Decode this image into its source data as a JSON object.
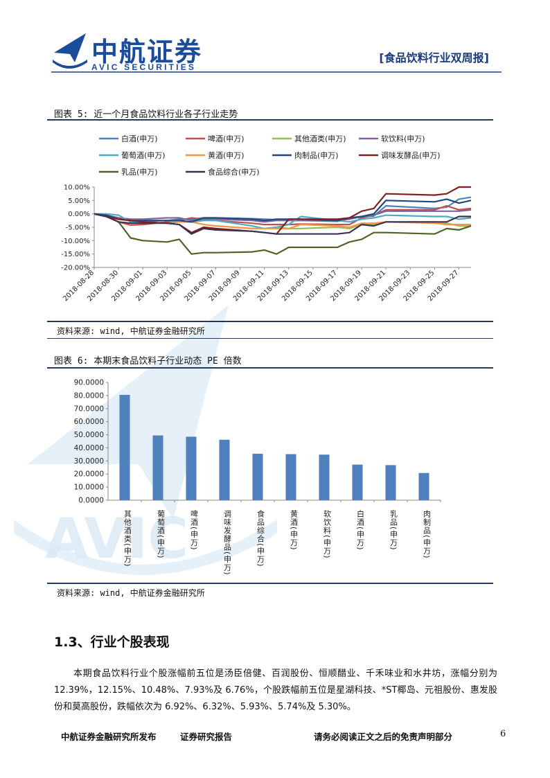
{
  "header": {
    "logo_cn": "中航证券",
    "logo_en": "AVIC SECURITIES",
    "logo_badge": "AVIC",
    "report_title": "[食品饮料行业双周报]"
  },
  "watermark": {
    "text": "AVIC"
  },
  "figure5": {
    "caption": "图表 5:  近一个月食品饮料行业各子行业走势",
    "source": "资料来源: wind, 中航证券金融研究所"
  },
  "figure6": {
    "caption": "图表 6:  本期末食品饮料子行业动态 PE 倍数",
    "source": "资料来源: wind, 中航证券金融研究所"
  },
  "chart_data": [
    {
      "type": "line",
      "title": "近一个月食品饮料行业各子行业走势",
      "x": [
        "2018-08-28",
        "2018-08-29",
        "2018-08-30",
        "2018-08-31",
        "2018-09-01",
        "2018-09-03",
        "2018-09-04",
        "2018-09-05",
        "2018-09-06",
        "2018-09-07",
        "2018-09-10",
        "2018-09-11",
        "2018-09-12",
        "2018-09-13",
        "2018-09-14",
        "2018-09-17",
        "2018-09-18",
        "2018-09-19",
        "2018-09-20",
        "2018-09-21",
        "2018-09-25",
        "2018-09-26",
        "2018-09-27",
        "2018-09-28"
      ],
      "x_ticks": [
        "2018-08-28",
        "2018-08-30",
        "2018-09-01",
        "2018-09-03",
        "2018-09-05",
        "2018-09-07",
        "2018-09-09",
        "2018-09-11",
        "2018-09-13",
        "2018-09-15",
        "2018-09-17",
        "2018-09-19",
        "2018-09-21",
        "2018-09-23",
        "2018-09-25",
        "2018-09-27"
      ],
      "y_ticks": [
        "10.00%",
        "5.00%",
        "0.00%",
        "-5.00%",
        "-10.00%",
        "-15.00%",
        "-20.00%"
      ],
      "ylim": [
        -20,
        10
      ],
      "legend_position": "top",
      "series": [
        {
          "name": "白酒(申万)",
          "color": "#4f81bd",
          "values": [
            0,
            -0.5,
            -1.5,
            -2.5,
            -2.8,
            -2.5,
            -2,
            -2,
            -1.5,
            -1.5,
            -1.8,
            -2,
            -2.2,
            -2.5,
            -2.5,
            -2.8,
            -1.8,
            -1.2,
            -0.8,
            3,
            2,
            2.5,
            5.5,
            6.2
          ]
        },
        {
          "name": "啤酒(申万)",
          "color": "#c0504d",
          "values": [
            0,
            -1,
            -3,
            -4.2,
            -4,
            -3,
            -2.5,
            -1.5,
            -2,
            -2.5,
            -3.5,
            -4,
            -4,
            -4,
            -3.8,
            -4,
            -4,
            -1.5,
            -0.5,
            1.5,
            1.5,
            3,
            1.5,
            2
          ]
        },
        {
          "name": "其他酒类(申万)",
          "color": "#9bbb59",
          "values": [
            0,
            -0.5,
            -1.5,
            -2,
            -2.5,
            -2.5,
            -3,
            -3,
            -4,
            -4.5,
            -5.5,
            -5.5,
            -5,
            -5.5,
            -5.5,
            -5,
            -5.5,
            -4,
            -4,
            -3,
            -3,
            -3.5,
            -4.5,
            -4.5
          ]
        },
        {
          "name": "软饮料(申万)",
          "color": "#8064a2",
          "values": [
            0,
            -0.5,
            -1.5,
            -2,
            -2,
            -1.5,
            -1.5,
            -2.5,
            -2,
            -2,
            -2.5,
            -3,
            -2.5,
            -2.5,
            -2.5,
            -2.5,
            -2,
            -1,
            -0.5,
            1,
            1,
            1,
            1,
            1.5
          ]
        },
        {
          "name": "葡萄酒(申万)",
          "color": "#4bacc6",
          "values": [
            0,
            0,
            -0.5,
            -3,
            -3,
            -3.5,
            -3,
            -3,
            -2.5,
            -2.5,
            -4.5,
            -5.5,
            -5,
            -4,
            -1,
            -2.5,
            -3,
            -2,
            -1.5,
            -0.5,
            -1,
            -1,
            -2,
            -1.5
          ]
        },
        {
          "name": "黄酒(申万)",
          "color": "#f79646",
          "values": [
            0,
            -0.5,
            -2,
            -2.5,
            -2.5,
            -2.5,
            -3,
            -3,
            -4,
            -4.5,
            -5.5,
            -5.5,
            -5.5,
            -5.5,
            -4,
            -4.5,
            -5,
            -3.5,
            -3.5,
            -3,
            -3.5,
            -4,
            -4,
            -4
          ]
        },
        {
          "name": "肉制品(申万)",
          "color": "#1f497d",
          "values": [
            0,
            -0.5,
            -2,
            -2.5,
            -2.5,
            -2.5,
            -2.5,
            -3,
            -1.5,
            -1.5,
            -2,
            -2.5,
            -2,
            -2,
            -2,
            -2.5,
            -1.5,
            -1,
            0,
            5,
            4.5,
            5.5,
            4,
            5
          ]
        },
        {
          "name": "调味发酵品(申万)",
          "color": "#7f1f1f",
          "values": [
            0,
            -1,
            -2,
            -2.5,
            -3,
            -3.5,
            -4,
            -7,
            -5,
            -5.5,
            -6.5,
            -7,
            -7.5,
            -2,
            -2,
            -2,
            -1.5,
            1,
            2,
            7.5,
            7,
            7.5,
            10,
            10
          ]
        },
        {
          "name": "乳品(申万)",
          "color": "#4f6228",
          "values": [
            0,
            -1,
            -3,
            -9,
            -10,
            -10.5,
            -9.5,
            -15,
            -14.5,
            -14.5,
            -14.2,
            -13.5,
            -15,
            -12.5,
            -12.5,
            -12.5,
            -10.5,
            -9.5,
            -7,
            -7,
            -7.5,
            -5.5,
            -6,
            -4.5
          ]
        },
        {
          "name": "食品综合(申万)",
          "color": "#403151",
          "values": [
            0,
            -1,
            -3,
            -3.5,
            -3.5,
            -3.5,
            -4,
            -7.5,
            -5.5,
            -6,
            -6.5,
            -7,
            -7.5,
            -7.5,
            -7.5,
            -7.5,
            -7,
            -4,
            -4.5,
            -3,
            -3,
            -3,
            -1,
            -1
          ]
        }
      ]
    },
    {
      "type": "bar",
      "title": "本期末食品饮料子行业动态 PE 倍数",
      "categories": [
        "其他酒类(申万)",
        "葡萄酒(申万)",
        "啤酒(申万)",
        "调味发酵品(申万)",
        "食品综合(申万)",
        "黄酒(申万)",
        "软饮料(申万)",
        "白酒(申万)",
        "乳品(申万)",
        "肉制品(申万)"
      ],
      "values": [
        80.5,
        49.5,
        48.5,
        46.2,
        35.5,
        35.2,
        34.8,
        27.2,
        26.8,
        20.8
      ],
      "y_ticks": [
        "90.0000",
        "80.0000",
        "70.0000",
        "60.0000",
        "50.0000",
        "40.0000",
        "30.0000",
        "20.0000",
        "10.0000",
        "0.0000"
      ],
      "ylim": [
        0,
        90
      ],
      "color": "#4f81bd"
    }
  ],
  "section": {
    "title": "1.3、行业个股表现",
    "paragraph": "本期食品饮料行业个股涨幅前五位是汤臣倍健、百润股份、恒顺醋业、千禾味业和水井坊，涨幅分别为 12.39%，12.15%、10.48%、7.93%及 6.76%，个股跌幅前五位是星湖科技、*ST椰岛、元祖股份、惠发股份和莫高股份，跌幅依次为 6.92%、6.32%、5.93%、5.74%及 5.30%。"
  },
  "footer": {
    "left": "中航证券金融研究所发布",
    "middle": "证券研究报告",
    "right": "请务必阅读正文之后的免责声明部分",
    "page_number": "6"
  }
}
